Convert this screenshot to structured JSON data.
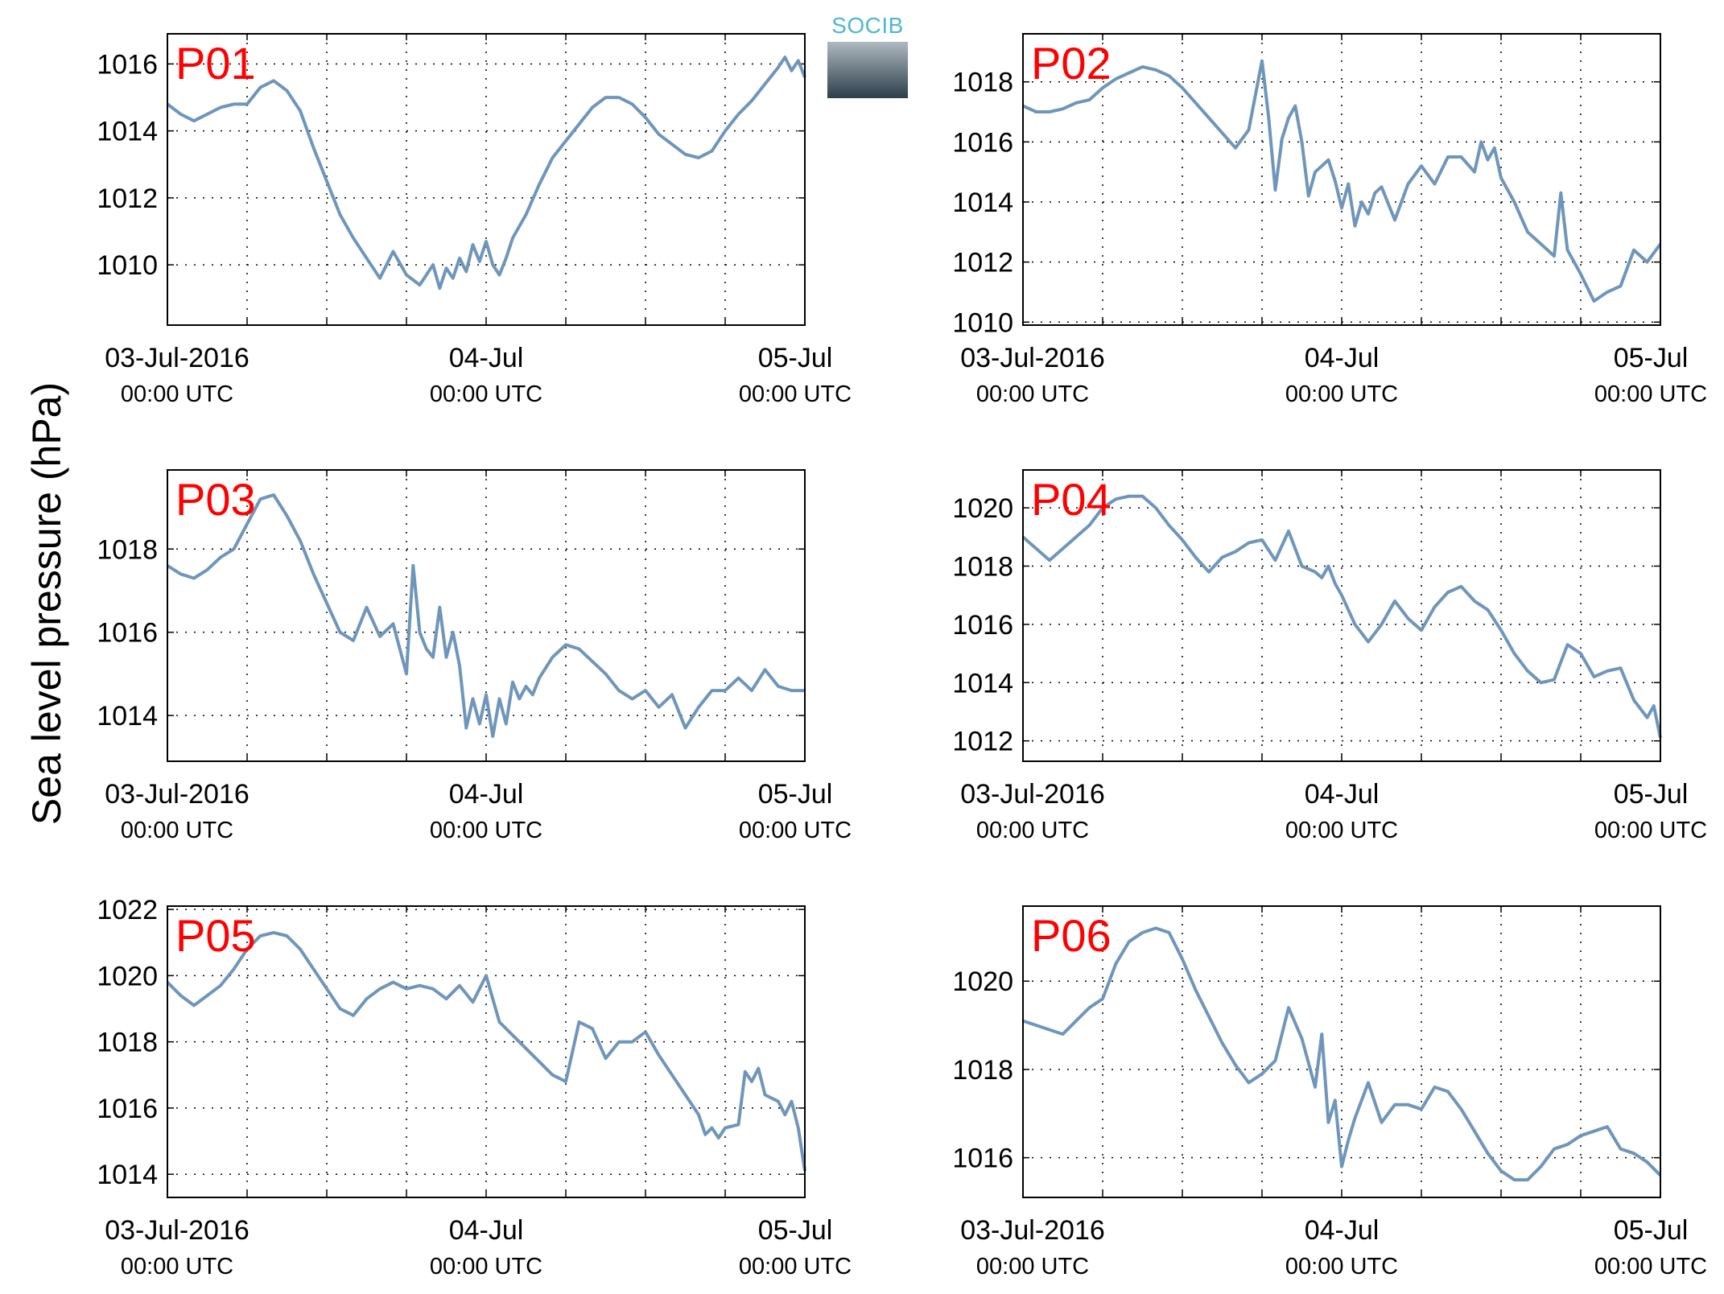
{
  "figure": {
    "ylabel": "Sea level pressure (hPa)",
    "logo_text": "SOCIB",
    "line_color": "#6f96ba",
    "panel_label_color": "#ff0000"
  },
  "chart_data": [
    {
      "type": "line",
      "label": "P01",
      "xlim": [
        0,
        48
      ],
      "ylim": [
        1008.2,
        1016.9
      ],
      "yticks": [
        1010,
        1012,
        1014,
        1016
      ],
      "x_major_ticks": [
        0,
        24,
        48
      ],
      "x_tick_labels": [
        [
          "03-Jul-2016",
          "00:00 UTC"
        ],
        [
          "04-Jul",
          "00:00 UTC"
        ],
        [
          "05-Jul",
          "00:00 UTC"
        ]
      ],
      "grid": true,
      "series": [
        {
          "x": [
            0,
            1,
            2,
            3,
            4,
            5,
            6,
            7,
            8,
            9,
            10,
            11,
            12,
            13,
            14,
            15,
            16,
            17,
            18,
            19,
            20,
            20.5,
            21,
            21.5,
            22,
            22.5,
            23,
            23.5,
            24,
            24.5,
            25,
            25.5,
            26,
            27,
            28,
            29,
            30,
            31,
            32,
            33,
            34,
            35,
            36,
            37,
            38,
            39,
            40,
            41,
            42,
            43,
            44,
            45,
            46,
            46.5,
            47,
            47.5,
            48
          ],
          "y": [
            1014.8,
            1014.5,
            1014.3,
            1014.5,
            1014.7,
            1014.8,
            1014.8,
            1015.3,
            1015.5,
            1015.2,
            1014.6,
            1013.5,
            1012.5,
            1011.5,
            1010.8,
            1010.2,
            1009.6,
            1010.4,
            1009.7,
            1009.4,
            1010.0,
            1009.3,
            1009.9,
            1009.6,
            1010.2,
            1009.8,
            1010.6,
            1010.1,
            1010.7,
            1010.0,
            1009.7,
            1010.2,
            1010.8,
            1011.5,
            1012.4,
            1013.2,
            1013.7,
            1014.2,
            1014.7,
            1015.0,
            1015.0,
            1014.8,
            1014.4,
            1013.9,
            1013.6,
            1013.3,
            1013.2,
            1013.4,
            1014.0,
            1014.5,
            1014.9,
            1015.4,
            1015.9,
            1016.2,
            1015.8,
            1016.1,
            1015.6
          ]
        }
      ]
    },
    {
      "type": "line",
      "label": "P02",
      "xlim": [
        0,
        48
      ],
      "ylim": [
        1009.9,
        1019.6
      ],
      "yticks": [
        1010,
        1012,
        1014,
        1016,
        1018
      ],
      "x_major_ticks": [
        0,
        24,
        48
      ],
      "x_tick_labels": [
        [
          "03-Jul-2016",
          "00:00 UTC"
        ],
        [
          "04-Jul",
          "00:00 UTC"
        ],
        [
          "05-Jul",
          "00:00 UTC"
        ]
      ],
      "grid": true,
      "series": [
        {
          "x": [
            0,
            1,
            2,
            3,
            4,
            5,
            6,
            7,
            8,
            9,
            10,
            11,
            12,
            13,
            14,
            15,
            16,
            17,
            18,
            18.5,
            19,
            19.5,
            20,
            20.5,
            21,
            21.5,
            22,
            22.5,
            23,
            23.5,
            24,
            24.5,
            25,
            25.5,
            26,
            26.5,
            27,
            28,
            29,
            30,
            31,
            32,
            33,
            34,
            34.5,
            35,
            35.5,
            36,
            37,
            38,
            39,
            40,
            40.5,
            41,
            41.5,
            42,
            43,
            44,
            45,
            46,
            47,
            48
          ],
          "y": [
            1017.2,
            1017.0,
            1017.0,
            1017.1,
            1017.3,
            1017.4,
            1017.8,
            1018.1,
            1018.3,
            1018.5,
            1018.4,
            1018.2,
            1017.8,
            1017.3,
            1016.8,
            1016.3,
            1015.8,
            1016.4,
            1018.7,
            1016.8,
            1014.4,
            1016.1,
            1016.8,
            1017.2,
            1016.0,
            1014.2,
            1015.0,
            1015.2,
            1015.4,
            1014.7,
            1013.8,
            1014.6,
            1013.2,
            1014.0,
            1013.6,
            1014.3,
            1014.5,
            1013.4,
            1014.6,
            1015.2,
            1014.6,
            1015.5,
            1015.5,
            1015.0,
            1016.0,
            1015.4,
            1015.8,
            1014.8,
            1014.0,
            1013.0,
            1012.6,
            1012.2,
            1014.3,
            1012.4,
            1012.0,
            1011.6,
            1010.7,
            1011.0,
            1011.2,
            1012.4,
            1012.0,
            1012.6
          ]
        }
      ]
    },
    {
      "type": "line",
      "label": "P03",
      "xlim": [
        0,
        48
      ],
      "ylim": [
        1012.9,
        1019.9
      ],
      "yticks": [
        1014,
        1016,
        1018
      ],
      "x_major_ticks": [
        0,
        24,
        48
      ],
      "x_tick_labels": [
        [
          "03-Jul-2016",
          "00:00 UTC"
        ],
        [
          "04-Jul",
          "00:00 UTC"
        ],
        [
          "05-Jul",
          "00:00 UTC"
        ]
      ],
      "grid": true,
      "series": [
        {
          "x": [
            0,
            1,
            2,
            3,
            4,
            5,
            6,
            7,
            8,
            9,
            10,
            11,
            12,
            13,
            14,
            15,
            16,
            17,
            18,
            18.5,
            19,
            19.5,
            20,
            20.5,
            21,
            21.5,
            22,
            22.5,
            23,
            23.5,
            24,
            24.5,
            25,
            25.5,
            26,
            26.5,
            27,
            27.5,
            28,
            29,
            30,
            31,
            32,
            33,
            34,
            35,
            36,
            37,
            38,
            39,
            40,
            41,
            42,
            43,
            44,
            45,
            46,
            47,
            48
          ],
          "y": [
            1017.6,
            1017.4,
            1017.3,
            1017.5,
            1017.8,
            1018.0,
            1018.6,
            1019.2,
            1019.3,
            1018.8,
            1018.2,
            1017.4,
            1016.7,
            1016.0,
            1015.8,
            1016.6,
            1015.9,
            1016.2,
            1015.0,
            1017.6,
            1016.0,
            1015.6,
            1015.4,
            1016.6,
            1015.4,
            1016.0,
            1015.2,
            1013.7,
            1014.4,
            1013.8,
            1014.5,
            1013.5,
            1014.4,
            1013.8,
            1014.8,
            1014.4,
            1014.7,
            1014.5,
            1014.9,
            1015.4,
            1015.7,
            1015.6,
            1015.3,
            1015.0,
            1014.6,
            1014.4,
            1014.6,
            1014.2,
            1014.5,
            1013.7,
            1014.2,
            1014.6,
            1014.6,
            1014.9,
            1014.6,
            1015.1,
            1014.7,
            1014.6,
            1014.6
          ]
        }
      ]
    },
    {
      "type": "line",
      "label": "P04",
      "xlim": [
        0,
        48
      ],
      "ylim": [
        1011.3,
        1021.3
      ],
      "yticks": [
        1012,
        1014,
        1016,
        1018,
        1020
      ],
      "x_major_ticks": [
        0,
        24,
        48
      ],
      "x_tick_labels": [
        [
          "03-Jul-2016",
          "00:00 UTC"
        ],
        [
          "04-Jul",
          "00:00 UTC"
        ],
        [
          "05-Jul",
          "00:00 UTC"
        ]
      ],
      "grid": true,
      "series": [
        {
          "x": [
            0,
            1,
            2,
            3,
            4,
            5,
            6,
            7,
            8,
            9,
            10,
            11,
            12,
            13,
            14,
            15,
            16,
            17,
            18,
            19,
            20,
            21,
            22,
            22.5,
            23,
            23.5,
            24,
            25,
            26,
            27,
            28,
            29,
            30,
            31,
            32,
            33,
            34,
            35,
            36,
            37,
            38,
            39,
            40,
            41,
            42,
            43,
            44,
            45,
            46,
            47,
            47.5,
            48
          ],
          "y": [
            1019.0,
            1018.6,
            1018.2,
            1018.6,
            1019.0,
            1019.4,
            1020.0,
            1020.3,
            1020.4,
            1020.4,
            1020.0,
            1019.4,
            1018.9,
            1018.3,
            1017.8,
            1018.3,
            1018.5,
            1018.8,
            1018.9,
            1018.2,
            1019.2,
            1018.0,
            1017.8,
            1017.6,
            1018.0,
            1017.4,
            1017.0,
            1016.0,
            1015.4,
            1016.0,
            1016.8,
            1016.2,
            1015.8,
            1016.6,
            1017.1,
            1017.3,
            1016.8,
            1016.5,
            1015.8,
            1015.0,
            1014.4,
            1014.0,
            1014.1,
            1015.3,
            1015.0,
            1014.2,
            1014.4,
            1014.5,
            1013.4,
            1012.8,
            1013.2,
            1012.1
          ]
        }
      ]
    },
    {
      "type": "line",
      "label": "P05",
      "xlim": [
        0,
        48
      ],
      "ylim": [
        1013.3,
        1022.1
      ],
      "yticks": [
        1014,
        1016,
        1018,
        1020,
        1022
      ],
      "x_major_ticks": [
        0,
        24,
        48
      ],
      "x_tick_labels": [
        [
          "03-Jul-2016",
          "00:00 UTC"
        ],
        [
          "04-Jul",
          "00:00 UTC"
        ],
        [
          "05-Jul",
          "00:00 UTC"
        ]
      ],
      "grid": true,
      "series": [
        {
          "x": [
            0,
            1,
            2,
            3,
            4,
            5,
            6,
            7,
            8,
            9,
            10,
            11,
            12,
            13,
            14,
            15,
            16,
            17,
            18,
            19,
            20,
            21,
            22,
            23,
            24,
            25,
            26,
            27,
            28,
            29,
            30,
            31,
            32,
            33,
            34,
            35,
            36,
            37,
            38,
            39,
            40,
            40.5,
            41,
            41.5,
            42,
            43,
            43.5,
            44,
            44.5,
            45,
            46,
            46.5,
            47,
            47.5,
            48
          ],
          "y": [
            1019.8,
            1019.4,
            1019.1,
            1019.4,
            1019.7,
            1020.2,
            1020.8,
            1021.2,
            1021.3,
            1021.2,
            1020.8,
            1020.2,
            1019.6,
            1019.0,
            1018.8,
            1019.3,
            1019.6,
            1019.8,
            1019.6,
            1019.7,
            1019.6,
            1019.3,
            1019.7,
            1019.2,
            1020.0,
            1018.6,
            1018.2,
            1017.8,
            1017.4,
            1017.0,
            1016.8,
            1018.6,
            1018.4,
            1017.5,
            1018.0,
            1018.0,
            1018.3,
            1017.6,
            1017.0,
            1016.4,
            1015.8,
            1015.2,
            1015.4,
            1015.1,
            1015.4,
            1015.5,
            1017.1,
            1016.8,
            1017.2,
            1016.4,
            1016.2,
            1015.8,
            1016.2,
            1015.4,
            1014.1
          ]
        }
      ]
    },
    {
      "type": "line",
      "label": "P06",
      "xlim": [
        0,
        48
      ],
      "ylim": [
        1015.1,
        1021.7
      ],
      "yticks": [
        1016,
        1018,
        1020
      ],
      "x_major_ticks": [
        0,
        24,
        48
      ],
      "x_tick_labels": [
        [
          "03-Jul-2016",
          "00:00 UTC"
        ],
        [
          "04-Jul",
          "00:00 UTC"
        ],
        [
          "05-Jul",
          "00:00 UTC"
        ]
      ],
      "grid": true,
      "series": [
        {
          "x": [
            0,
            1,
            2,
            3,
            4,
            5,
            6,
            7,
            8,
            9,
            10,
            11,
            12,
            13,
            14,
            15,
            16,
            17,
            18,
            19,
            20,
            21,
            22,
            22.5,
            23,
            23.5,
            24,
            24.5,
            25,
            26,
            27,
            28,
            29,
            30,
            31,
            32,
            33,
            34,
            35,
            36,
            37,
            38,
            39,
            40,
            41,
            42,
            43,
            44,
            45,
            46,
            47,
            48
          ],
          "y": [
            1019.1,
            1019.0,
            1018.9,
            1018.8,
            1019.1,
            1019.4,
            1019.6,
            1020.4,
            1020.9,
            1021.1,
            1021.2,
            1021.1,
            1020.5,
            1019.8,
            1019.2,
            1018.6,
            1018.1,
            1017.7,
            1017.9,
            1018.2,
            1019.4,
            1018.7,
            1017.6,
            1018.8,
            1016.8,
            1017.3,
            1015.8,
            1016.4,
            1016.9,
            1017.7,
            1016.8,
            1017.2,
            1017.2,
            1017.1,
            1017.6,
            1017.5,
            1017.1,
            1016.6,
            1016.1,
            1015.7,
            1015.5,
            1015.5,
            1015.8,
            1016.2,
            1016.3,
            1016.5,
            1016.6,
            1016.7,
            1016.2,
            1016.1,
            1015.9,
            1015.6
          ]
        }
      ]
    }
  ]
}
